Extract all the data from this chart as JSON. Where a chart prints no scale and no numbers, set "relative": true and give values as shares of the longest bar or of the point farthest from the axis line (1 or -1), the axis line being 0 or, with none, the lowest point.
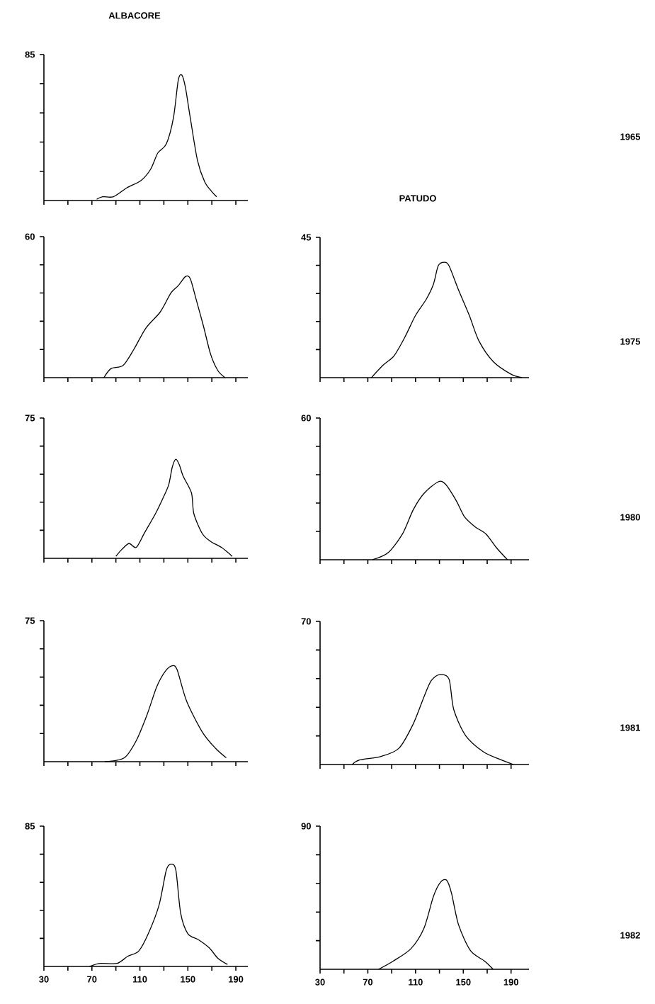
{
  "chart_data": [
    {
      "type": "line",
      "relative": true,
      "title": "ALBACORE",
      "color": "#000000",
      "tick_labels": false,
      "annotations": [
        "85",
        "1965"
      ],
      "xlim": [
        30,
        200
      ],
      "xticks": [
        30,
        {
          "value": 50,
          "label": null
        },
        70,
        {
          "value": 90,
          "label": null
        },
        110,
        {
          "value": 130,
          "label": null
        },
        150,
        {
          "value": 170,
          "label": null
        },
        190
      ],
      "x": [
        74,
        79,
        88,
        99,
        111,
        119,
        125,
        132,
        138,
        142,
        145,
        148,
        152,
        158,
        164,
        170,
        174
      ],
      "values": [
        0.01,
        0.03,
        0.03,
        0.1,
        0.16,
        0.25,
        0.38,
        0.45,
        0.66,
        0.96,
        1,
        0.9,
        0.66,
        0.32,
        0.15,
        0.07,
        0.03
      ]
    },
    {
      "type": "line",
      "relative": true,
      "color": "#000000",
      "tick_labels": false,
      "annotations": [
        "60"
      ],
      "xlim": [
        30,
        200
      ],
      "xticks": [
        30,
        {
          "value": 50,
          "label": null
        },
        70,
        {
          "value": 90,
          "label": null
        },
        110,
        {
          "value": 130,
          "label": null
        },
        150,
        {
          "value": 170,
          "label": null
        },
        190
      ],
      "x": [
        80,
        86,
        96,
        105,
        115,
        127,
        136,
        142,
        148,
        152,
        157,
        163,
        169,
        175,
        181
      ],
      "values": [
        0,
        0.09,
        0.12,
        0.28,
        0.49,
        0.65,
        0.84,
        0.91,
        1,
        0.98,
        0.77,
        0.51,
        0.23,
        0.07,
        0
      ]
    },
    {
      "type": "line",
      "relative": true,
      "title": "PATUDO",
      "color": "#000000",
      "tick_labels": false,
      "annotations": [
        "45",
        "1975"
      ],
      "xlim": [
        30,
        205
      ],
      "xticks": [
        30,
        {
          "value": 50,
          "label": null
        },
        70,
        {
          "value": 90,
          "label": null
        },
        110,
        {
          "value": 130,
          "label": null
        },
        150,
        {
          "value": 170,
          "label": null
        },
        190
      ],
      "x": [
        73,
        83,
        92,
        101,
        110,
        119,
        125,
        129,
        134,
        138,
        146,
        155,
        163,
        175,
        190,
        199
      ],
      "values": [
        0,
        0.11,
        0.19,
        0.35,
        0.54,
        0.68,
        0.81,
        0.97,
        1,
        0.97,
        0.76,
        0.54,
        0.32,
        0.14,
        0.03,
        0
      ]
    },
    {
      "type": "line",
      "relative": true,
      "color": "#000000",
      "tick_labels": false,
      "annotations": [
        "75"
      ],
      "xlim": [
        30,
        200
      ],
      "xticks": [
        30,
        {
          "value": 50,
          "label": null
        },
        70,
        {
          "value": 90,
          "label": null
        },
        110,
        {
          "value": 130,
          "label": null
        },
        150,
        {
          "value": 170,
          "label": null
        },
        190
      ],
      "x": [
        90,
        95,
        101,
        107,
        114,
        123,
        129,
        134,
        137,
        140,
        143,
        146,
        153,
        155,
        162,
        169,
        178,
        187
      ],
      "values": [
        0.02,
        0.09,
        0.15,
        0.11,
        0.26,
        0.45,
        0.6,
        0.74,
        0.92,
        1,
        0.94,
        0.83,
        0.66,
        0.45,
        0.25,
        0.17,
        0.11,
        0.02
      ]
    },
    {
      "type": "line",
      "relative": true,
      "color": "#000000",
      "tick_labels": false,
      "annotations": [
        "60",
        "1980"
      ],
      "xlim": [
        30,
        205
      ],
      "xticks": [
        30,
        {
          "value": 50,
          "label": null
        },
        70,
        {
          "value": 90,
          "label": null
        },
        110,
        {
          "value": 130,
          "label": null
        },
        150,
        {
          "value": 170,
          "label": null
        },
        190
      ],
      "x": [
        74,
        87,
        99,
        108,
        117,
        129,
        135,
        144,
        151,
        160,
        169,
        178,
        187
      ],
      "values": [
        0,
        0.09,
        0.33,
        0.64,
        0.85,
        1,
        0.97,
        0.76,
        0.55,
        0.42,
        0.33,
        0.15,
        0
      ]
    },
    {
      "type": "line",
      "relative": true,
      "color": "#000000",
      "tick_labels": false,
      "annotations": [
        "75"
      ],
      "xlim": [
        30,
        200
      ],
      "xticks": [
        30,
        {
          "value": 50,
          "label": null
        },
        70,
        {
          "value": 90,
          "label": null
        },
        110,
        {
          "value": 130,
          "label": null
        },
        150,
        {
          "value": 170,
          "label": null
        },
        190
      ],
      "x": [
        81,
        97,
        107,
        116,
        124,
        131,
        137,
        141,
        149,
        162,
        173,
        182
      ],
      "values": [
        0,
        0.04,
        0.22,
        0.49,
        0.78,
        0.94,
        1,
        0.96,
        0.63,
        0.31,
        0.14,
        0.04
      ]
    },
    {
      "type": "line",
      "relative": true,
      "color": "#000000",
      "tick_labels": false,
      "annotations": [
        "70",
        "1981"
      ],
      "xlim": [
        30,
        205
      ],
      "xticks": [
        30,
        {
          "value": 50,
          "label": null
        },
        70,
        {
          "value": 90,
          "label": null
        },
        110,
        {
          "value": 130,
          "label": null
        },
        150,
        {
          "value": 170,
          "label": null
        },
        190
      ],
      "x": [
        57,
        63,
        81,
        96,
        108,
        117,
        123,
        130,
        138,
        142,
        152,
        167,
        182,
        192
      ],
      "values": [
        0,
        0.05,
        0.09,
        0.18,
        0.45,
        0.75,
        0.93,
        1,
        0.95,
        0.61,
        0.32,
        0.14,
        0.05,
        0
      ]
    },
    {
      "type": "line",
      "relative": true,
      "color": "#000000",
      "annotations": [
        "85"
      ],
      "xlim": [
        30,
        200
      ],
      "xticks": [
        30,
        {
          "value": 50,
          "label": null
        },
        70,
        {
          "value": 90,
          "label": null
        },
        110,
        {
          "value": 130,
          "label": null
        },
        150,
        {
          "value": 170,
          "label": null
        },
        190
      ],
      "x": [
        68,
        77,
        91,
        100,
        109,
        117,
        126,
        132,
        136,
        140,
        144,
        150,
        159,
        168,
        175,
        183
      ],
      "values": [
        0,
        0.03,
        0.03,
        0.1,
        0.15,
        0.32,
        0.6,
        0.94,
        1,
        0.94,
        0.52,
        0.32,
        0.26,
        0.18,
        0.08,
        0.02
      ]
    },
    {
      "type": "line",
      "relative": true,
      "color": "#000000",
      "annotations": [
        "90",
        "1982"
      ],
      "xlim": [
        30,
        205
      ],
      "xticks": [
        30,
        {
          "value": 50,
          "label": null
        },
        70,
        {
          "value": 90,
          "label": null
        },
        110,
        {
          "value": 130,
          "label": null
        },
        150,
        {
          "value": 170,
          "label": null
        },
        190
      ],
      "x": [
        79,
        91,
        106,
        117,
        125,
        131,
        136,
        140,
        146,
        156,
        168,
        175
      ],
      "values": [
        0,
        0.09,
        0.23,
        0.46,
        0.82,
        0.98,
        1,
        0.86,
        0.5,
        0.21,
        0.09,
        0
      ]
    }
  ]
}
